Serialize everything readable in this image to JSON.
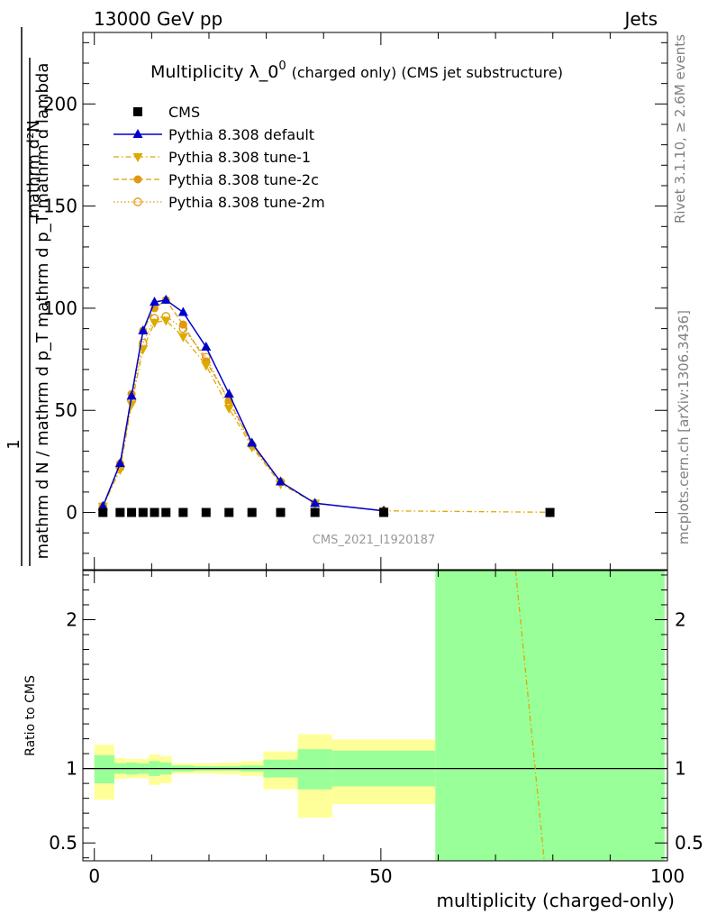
{
  "header": {
    "left": "13000 GeV pp",
    "right": "Jets"
  },
  "side": {
    "rivet": "Rivet 3.1.10, ≥ 2.6M events",
    "mcplots": "mcplots.cern.ch [arXiv:1306.3436]"
  },
  "chart_data": [
    {
      "type": "line",
      "title_main": "Multiplicity λ_0",
      "title_sup": "0",
      "title_extra": "(charged only) (CMS jet substructure)",
      "watermark": "CMS_2021_I1920187",
      "ylabel_top": "1",
      "ylabel_numerator": "mathrm d²N",
      "ylabel_denominator": "mathrm d N / mathrm d p_T mathrm d p_T mathrm d lambda",
      "xlim": [
        -2,
        100
      ],
      "ylim": [
        -28,
        235
      ],
      "y_ticks": [
        {
          "value": 0,
          "label": "0"
        },
        {
          "value": 50,
          "label": "50"
        },
        {
          "value": 100,
          "label": "100"
        },
        {
          "value": 150,
          "label": "150"
        },
        {
          "value": 200,
          "label": "200"
        }
      ],
      "legend_position": "top-left",
      "series": [
        {
          "name": "CMS",
          "color": "#000000",
          "marker": "square",
          "points": [
            {
              "x": 1.5,
              "y": 0
            },
            {
              "x": 4.5,
              "y": 0
            },
            {
              "x": 6.5,
              "y": 0
            },
            {
              "x": 8.5,
              "y": 0
            },
            {
              "x": 10.5,
              "y": 0
            },
            {
              "x": 12.5,
              "y": 0
            },
            {
              "x": 15.5,
              "y": 0
            },
            {
              "x": 19.5,
              "y": 0
            },
            {
              "x": 23.5,
              "y": 0
            },
            {
              "x": 27.5,
              "y": 0
            },
            {
              "x": 32.5,
              "y": 0
            },
            {
              "x": 38.5,
              "y": 0
            },
            {
              "x": 50.5,
              "y": 0
            },
            {
              "x": 79.5,
              "y": 0
            }
          ]
        },
        {
          "name": "Pythia 8.308 default",
          "color": "#0000cc",
          "marker": "triangle-up",
          "dash": "solid",
          "points": [
            {
              "x": 1.5,
              "y": 3
            },
            {
              "x": 4.5,
              "y": 24
            },
            {
              "x": 6.5,
              "y": 57
            },
            {
              "x": 8.5,
              "y": 89
            },
            {
              "x": 10.5,
              "y": 103
            },
            {
              "x": 12.5,
              "y": 104
            },
            {
              "x": 15.5,
              "y": 98
            },
            {
              "x": 19.5,
              "y": 81
            },
            {
              "x": 23.5,
              "y": 58
            },
            {
              "x": 27.5,
              "y": 34
            },
            {
              "x": 32.5,
              "y": 15
            },
            {
              "x": 38.5,
              "y": 4.5
            },
            {
              "x": 50.5,
              "y": 0.8
            }
          ]
        },
        {
          "name": "Pythia 8.308 tune-1",
          "color": "#ddaa00",
          "marker": "triangle-down",
          "dash": "dashdot",
          "points": [
            {
              "x": 1.5,
              "y": 3
            },
            {
              "x": 4.5,
              "y": 21
            },
            {
              "x": 6.5,
              "y": 53
            },
            {
              "x": 8.5,
              "y": 80
            },
            {
              "x": 10.5,
              "y": 93
            },
            {
              "x": 12.5,
              "y": 94
            },
            {
              "x": 15.5,
              "y": 86
            },
            {
              "x": 19.5,
              "y": 72
            },
            {
              "x": 23.5,
              "y": 51
            },
            {
              "x": 27.5,
              "y": 32
            },
            {
              "x": 32.5,
              "y": 14
            },
            {
              "x": 38.5,
              "y": 4.5
            },
            {
              "x": 50.5,
              "y": 0.8
            },
            {
              "x": 79.5,
              "y": 0.1
            }
          ]
        },
        {
          "name": "Pythia 8.308 tune-2c",
          "color": "#e09a10",
          "marker": "circle",
          "dash": "dashed",
          "points": [
            {
              "x": 1.5,
              "y": 3
            },
            {
              "x": 4.5,
              "y": 24
            },
            {
              "x": 6.5,
              "y": 58
            },
            {
              "x": 8.5,
              "y": 89
            },
            {
              "x": 10.5,
              "y": 100
            },
            {
              "x": 12.5,
              "y": 104
            },
            {
              "x": 15.5,
              "y": 92
            },
            {
              "x": 19.5,
              "y": 74
            },
            {
              "x": 23.5,
              "y": 55
            },
            {
              "x": 27.5,
              "y": 33
            },
            {
              "x": 32.5,
              "y": 15
            },
            {
              "x": 38.5,
              "y": 4.5
            },
            {
              "x": 50.5,
              "y": 0.8
            }
          ]
        },
        {
          "name": "Pythia 8.308 tune-2m",
          "color": "#e09a10",
          "marker": "open-circle",
          "dash": "dotted",
          "points": [
            {
              "x": 1.5,
              "y": 3
            },
            {
              "x": 4.5,
              "y": 22
            },
            {
              "x": 6.5,
              "y": 55
            },
            {
              "x": 8.5,
              "y": 83
            },
            {
              "x": 10.5,
              "y": 95
            },
            {
              "x": 12.5,
              "y": 96
            },
            {
              "x": 15.5,
              "y": 90
            },
            {
              "x": 19.5,
              "y": 76
            },
            {
              "x": 23.5,
              "y": 54
            },
            {
              "x": 27.5,
              "y": 33
            },
            {
              "x": 32.5,
              "y": 15
            },
            {
              "x": 38.5,
              "y": 4.5
            },
            {
              "x": 50.5,
              "y": 0.8
            }
          ]
        }
      ]
    },
    {
      "type": "area",
      "ylabel": "Ratio to CMS",
      "xlabel": "multiplicity (charged-only)",
      "xlim": [
        -2,
        100
      ],
      "ylim": [
        0.38,
        2.33
      ],
      "x_ticks": [
        {
          "value": 0,
          "label": "0"
        },
        {
          "value": 50,
          "label": "50"
        },
        {
          "value": 100,
          "label": "100"
        }
      ],
      "y_ticks": [
        {
          "value": 0.5,
          "label": "0.5"
        },
        {
          "value": 1,
          "label": "1"
        },
        {
          "value": 2,
          "label": "2"
        }
      ],
      "reference_line": 1,
      "band_colors": {
        "inner": "#99ff99",
        "outer": "#ffff99"
      },
      "bands": [
        {
          "x0": 0,
          "x1": 3.5,
          "inner": [
            0.9,
            1.09
          ],
          "outer": [
            0.79,
            1.16
          ]
        },
        {
          "x0": 3.5,
          "x1": 5.5,
          "inner": [
            0.965,
            1.035
          ],
          "outer": [
            0.93,
            1.07
          ]
        },
        {
          "x0": 5.5,
          "x1": 7.5,
          "inner": [
            0.96,
            1.04
          ],
          "outer": [
            0.935,
            1.065
          ]
        },
        {
          "x0": 7.5,
          "x1": 9.5,
          "inner": [
            0.965,
            1.035
          ],
          "outer": [
            0.935,
            1.065
          ]
        },
        {
          "x0": 9.5,
          "x1": 11.5,
          "inner": [
            0.95,
            1.05
          ],
          "outer": [
            0.89,
            1.095
          ]
        },
        {
          "x0": 11.5,
          "x1": 13.5,
          "inner": [
            0.96,
            1.04
          ],
          "outer": [
            0.9,
            1.085
          ]
        },
        {
          "x0": 13.5,
          "x1": 17.5,
          "inner": [
            0.98,
            1.02
          ],
          "outer": [
            0.965,
            1.035
          ]
        },
        {
          "x0": 17.5,
          "x1": 21.5,
          "inner": [
            0.985,
            1.015
          ],
          "outer": [
            0.965,
            1.035
          ]
        },
        {
          "x0": 21.5,
          "x1": 25.5,
          "inner": [
            0.985,
            1.015
          ],
          "outer": [
            0.96,
            1.04
          ]
        },
        {
          "x0": 25.5,
          "x1": 29.5,
          "inner": [
            0.98,
            1.02
          ],
          "outer": [
            0.95,
            1.05
          ]
        },
        {
          "x0": 29.5,
          "x1": 35.5,
          "inner": [
            0.94,
            1.06
          ],
          "outer": [
            0.86,
            1.115
          ]
        },
        {
          "x0": 35.5,
          "x1": 41.5,
          "inner": [
            0.86,
            1.13
          ],
          "outer": [
            0.67,
            1.23
          ]
        },
        {
          "x0": 41.5,
          "x1": 59.5,
          "inner": [
            0.88,
            1.12
          ],
          "outer": [
            0.76,
            1.195
          ]
        },
        {
          "x0": 59.5,
          "x1": 99.5,
          "inner": [
            0.38,
            2.33
          ],
          "outer": [
            0.38,
            2.33
          ]
        }
      ],
      "ratio_series": [
        {
          "name": "Pythia 8.308 tune-1",
          "color": "#ddaa00",
          "dash": "dashdot",
          "points": [
            {
              "x": 73.5,
              "y": 2.33
            },
            {
              "x": 78.5,
              "y": 0.38
            }
          ]
        }
      ]
    }
  ]
}
